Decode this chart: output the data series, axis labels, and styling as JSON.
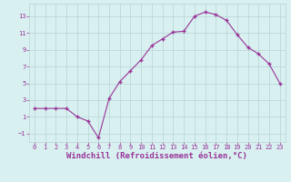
{
  "x": [
    0,
    1,
    2,
    3,
    4,
    5,
    6,
    7,
    8,
    9,
    10,
    11,
    12,
    13,
    14,
    15,
    16,
    17,
    18,
    19,
    20,
    21,
    22,
    23
  ],
  "y": [
    2,
    2,
    2,
    2,
    1,
    0.5,
    -1.5,
    3.2,
    5.2,
    6.5,
    7.8,
    9.5,
    10.3,
    11.1,
    11.2,
    13.0,
    13.5,
    13.2,
    12.5,
    10.8,
    9.3,
    8.5,
    7.3,
    5.0
  ],
  "line_color": "#993399",
  "marker": "+",
  "marker_size": 3,
  "marker_lw": 1.0,
  "bg_color": "#d8f0f0",
  "grid_color": "#b8d4d4",
  "xlabel": "Windchill (Refroidissement éolien,°C)",
  "xlim": [
    -0.5,
    23.5
  ],
  "ylim": [
    -2.0,
    14.5
  ],
  "yticks": [
    -1,
    1,
    3,
    5,
    7,
    9,
    11,
    13
  ],
  "xticks": [
    0,
    1,
    2,
    3,
    4,
    5,
    6,
    7,
    8,
    9,
    10,
    11,
    12,
    13,
    14,
    15,
    16,
    17,
    18,
    19,
    20,
    21,
    22,
    23
  ],
  "tick_color": "#993399",
  "tick_fontsize": 5.0,
  "xlabel_fontsize": 6.5,
  "xlabel_color": "#993399",
  "line_width": 0.8
}
